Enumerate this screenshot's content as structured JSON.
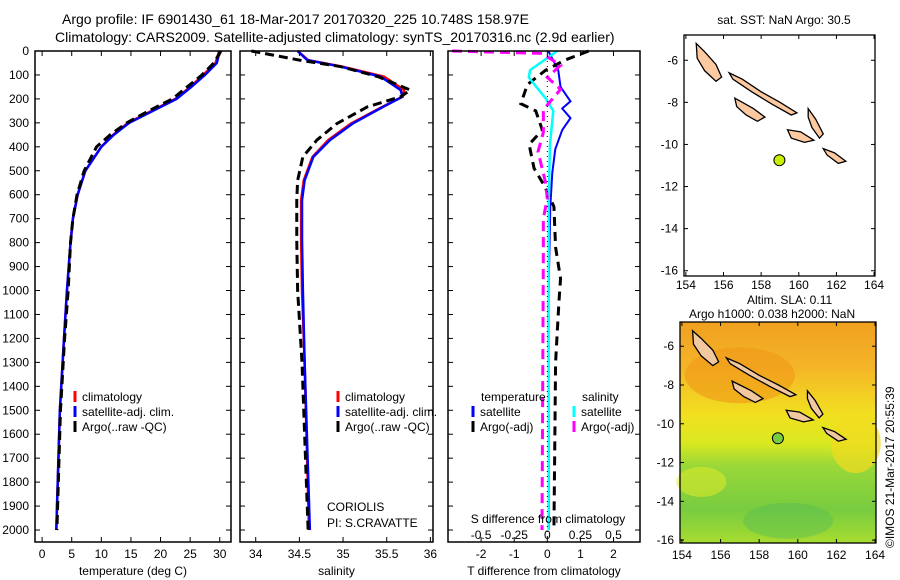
{
  "title_line1": "Argo profile: IF 6901430_61 18-Mar-2017 20170320_225 10.748S 158.97E",
  "title_line2": "Climatology: CARS2009. Satellite-adjusted climatology: synTS_20170316.nc (2.9d earlier)",
  "credit": "©IMOS 21-Mar-2017 20:55:39",
  "colors": {
    "climatology": "#ff0000",
    "satellite": "#0000ff",
    "argo": "#000000",
    "sal_satellite": "#00ffff",
    "sal_argo": "#ff00ff",
    "island": "#fdc9a0",
    "argo_dot": "#c8f000"
  },
  "chart_data": [
    {
      "type": "line",
      "xlabel": "temperature (deg C)",
      "ylabel": "",
      "xlim": [
        -1.2,
        31.9
      ],
      "ylim": [
        2050,
        0
      ],
      "xticks": [
        "0",
        "5",
        "10",
        "15",
        "20",
        "25",
        "30"
      ],
      "yticks": [
        "0",
        "100",
        "200",
        "300",
        "400",
        "500",
        "600",
        "700",
        "800",
        "900",
        "1000",
        "1100",
        "1200",
        "1300",
        "1400",
        "1500",
        "1600",
        "1700",
        "1800",
        "1900",
        "2000"
      ],
      "legend": [
        "climatology",
        "satellite-adj. clim.",
        "Argo(..raw -QC)"
      ],
      "depth": [
        0,
        50,
        100,
        150,
        200,
        250,
        300,
        350,
        400,
        500,
        600,
        700,
        800,
        1000,
        1200,
        1500,
        2000
      ],
      "series": [
        {
          "name": "climatology",
          "values": [
            29.9,
            29.3,
            27.2,
            25.0,
            22.5,
            18.5,
            14.5,
            12.0,
            10.0,
            7.3,
            6.0,
            5.2,
            4.8,
            4.2,
            3.7,
            3.0,
            2.4
          ]
        },
        {
          "name": "satellite-adj. clim.",
          "values": [
            30.0,
            29.5,
            27.5,
            25.2,
            22.7,
            18.7,
            14.7,
            12.1,
            10.0,
            7.3,
            6.0,
            5.2,
            4.8,
            4.2,
            3.7,
            3.0,
            2.4
          ]
        },
        {
          "name": "Argo(..raw -QC)",
          "values": [
            30.2,
            29.0,
            27.0,
            24.5,
            22.0,
            18.0,
            14.3,
            11.5,
            9.2,
            7.1,
            5.9,
            5.2,
            4.8,
            4.4,
            3.8,
            3.1,
            2.5
          ]
        }
      ]
    },
    {
      "type": "line",
      "xlabel": "salinity",
      "xlim": [
        33.82,
        36.03
      ],
      "ylim": [
        2050,
        0
      ],
      "xticks": [
        "34",
        "34.5",
        "35",
        "35.5",
        "36"
      ],
      "legend": [
        "climatology",
        "satellite-adj. clim.",
        "Argo(..raw -QC)"
      ],
      "annotations": [
        "CORIOLIS",
        "PI: S.CRAVATTE"
      ],
      "depth": [
        0,
        38,
        65,
        107,
        163,
        191,
        233,
        303,
        372,
        442,
        540,
        623,
        790,
        1000,
        1300,
        2000
      ],
      "series": [
        {
          "name": "climatology",
          "values": [
            34.48,
            34.6,
            34.99,
            35.47,
            35.7,
            35.68,
            35.45,
            35.09,
            34.83,
            34.65,
            34.55,
            34.52,
            34.52,
            34.53,
            34.56,
            34.61
          ]
        },
        {
          "name": "satellite-adj. clim.",
          "values": [
            34.48,
            34.59,
            34.97,
            35.43,
            35.66,
            35.68,
            35.46,
            35.11,
            34.85,
            34.66,
            34.56,
            34.53,
            34.53,
            34.54,
            34.56,
            34.62
          ]
        },
        {
          "name": "Argo(..raw -QC)",
          "values": [
            33.95,
            34.5,
            34.97,
            35.4,
            35.77,
            35.66,
            35.28,
            34.93,
            34.7,
            34.54,
            34.48,
            34.47,
            34.47,
            34.48,
            34.53,
            34.6
          ]
        }
      ]
    },
    {
      "type": "line",
      "xlabel": "T difference from climatology",
      "x2label": "S difference from climatology",
      "xlim": [
        -3.0,
        2.8
      ],
      "ylim": [
        2050,
        0
      ],
      "xticks": [
        "-2",
        "-1",
        "0",
        "1",
        "2"
      ],
      "x2ticks": [
        "-0.5",
        "-0.25",
        "0",
        "0.25",
        "0.5"
      ],
      "legend_temperature_title": "temperature",
      "legend_salinity_title": "salinity",
      "legend": [
        "satellite",
        "Argo(-adj)",
        "satellite",
        "Argo(-adj)"
      ],
      "series": [
        {
          "name": "T satellite",
          "units": "degC",
          "depth": [
            0,
            80,
            150,
            210,
            240,
            280,
            330,
            410,
            510,
            650,
            1070,
            2000
          ],
          "values": [
            0.03,
            0.33,
            0.4,
            0.7,
            0.45,
            0.7,
            0.45,
            0.24,
            0.15,
            0.09,
            0.03,
            0.05
          ]
        },
        {
          "name": "T Argo(-adj)",
          "units": "degC",
          "depth": [
            0,
            37,
            80,
            140,
            220,
            250,
            330,
            390,
            490,
            560,
            650,
            820,
            950,
            1050,
            1300,
            2000
          ],
          "values": [
            1.25,
            0.55,
            -0.05,
            -0.6,
            -0.8,
            -0.35,
            -0.15,
            -0.55,
            -0.4,
            -0.1,
            0.2,
            0.25,
            0.4,
            0.35,
            0.25,
            0.2
          ]
        },
        {
          "name": "S satellite",
          "units": "psu",
          "depth": [
            0,
            80,
            110,
            200,
            250,
            390,
            650,
            2000
          ],
          "values": [
            0.075,
            -0.13,
            -0.14,
            -0.01,
            0.045,
            0.02,
            0.01,
            0.01
          ]
        },
        {
          "name": "S Argo(-adj)",
          "units": "psu",
          "depth": [
            0,
            10,
            60,
            110,
            160,
            245,
            340,
            420,
            545,
            615,
            700,
            840,
            2000
          ],
          "values": [
            -0.72,
            -0.04,
            0.1,
            0,
            0.1,
            -0.03,
            -0.03,
            -0.07,
            -0.015,
            0,
            -0.03,
            -0.03,
            -0.04
          ]
        }
      ]
    },
    {
      "type": "scatter",
      "title": "sat. SST: NaN Argo: 30.5",
      "xlim": [
        153.9,
        164.05
      ],
      "ylim": [
        -16.25,
        -4.8
      ],
      "xticks": [
        "154",
        "156",
        "158",
        "160",
        "162",
        "164"
      ],
      "yticks": [
        "-6",
        "-8",
        "-10",
        "-12",
        "-14",
        "-16"
      ],
      "points": [
        {
          "lon": 158.97,
          "lat": -10.748
        }
      ]
    },
    {
      "type": "heatmap",
      "title_line1": "Altim. SLA: 0.11",
      "title_line2": "Argo h1000: 0.038 h2000: NaN",
      "xlim": [
        153.9,
        164.05
      ],
      "ylim": [
        -16.15,
        -4.75
      ],
      "xticks": [
        "154",
        "156",
        "158",
        "160",
        "162",
        "164"
      ],
      "yticks": [
        "-6",
        "-8",
        "-10",
        "-12",
        "-14",
        "-16"
      ],
      "points": [
        {
          "lon": 158.97,
          "lat": -10.748
        }
      ]
    }
  ]
}
